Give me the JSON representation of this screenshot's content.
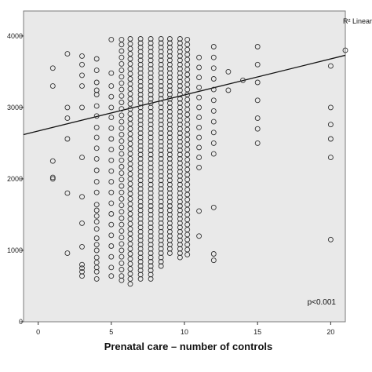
{
  "chart_data": {
    "type": "scatter",
    "title": "",
    "xlabel": "Prenatal care – number of controls",
    "ylabel": "",
    "xlim": [
      -1,
      21
    ],
    "ylim": [
      0,
      4350
    ],
    "x_ticks": [
      0,
      5,
      10,
      15,
      20
    ],
    "y_ticks": [
      0,
      1000,
      2000,
      3000,
      4000
    ],
    "x_tick_labels": [
      "0",
      "5",
      "10",
      "15",
      "20"
    ],
    "y_tick_labels": [
      "0",
      "1000",
      "2000",
      "3000",
      "4000"
    ],
    "grid": false,
    "legend": "top-right",
    "legend_label": "R² Linear",
    "annotation": "p<0.001",
    "fit_line": {
      "x": [
        -1,
        21
      ],
      "y": [
        2620,
        3730
      ]
    },
    "colors": {
      "background": "#e9e9e9",
      "marker_stroke": "#333333",
      "line": "#111111"
    },
    "series": [
      {
        "name": "",
        "columns": [
          {
            "x": 1,
            "y": [
              3550,
              3300,
              2250,
              2020,
              2000
            ]
          },
          {
            "x": 2,
            "y": [
              3750,
              3000,
              2850,
              2560,
              1800,
              960
            ]
          },
          {
            "x": 3,
            "y": [
              3720,
              3600,
              3450,
              3300,
              3000,
              2300,
              1750,
              1380,
              1050,
              800,
              750,
              700,
              640
            ]
          },
          {
            "x": 4,
            "y": [
              3680,
              3520,
              3350,
              3240,
              3180,
              3020,
              2880,
              2720,
              2580,
              2430,
              2280,
              2120,
              1960,
              1810,
              1640,
              1560,
              1480,
              1400,
              1300,
              1170,
              1080,
              1000,
              900,
              830,
              760,
              700,
              600
            ]
          },
          {
            "x": 5,
            "y": [
              3950,
              3480,
              3300,
              3150,
              3000,
              2860,
              2710,
              2560,
              2410,
              2260,
              2110,
              1960,
              1810,
              1660,
              1510,
              1360,
              1210,
              1060,
              910,
              760,
              640
            ]
          },
          {
            "x": 5.7,
            "y": [
              3950,
              3880,
              3790,
              3700,
              3610,
              3520,
              3430,
              3340,
              3250,
              3160,
              3070,
              2980,
              2890,
              2800,
              2710,
              2620,
              2530,
              2440,
              2350,
              2260,
              2170,
              2080,
              1990,
              1900,
              1810,
              1720,
              1630,
              1540,
              1450,
              1360,
              1270,
              1180,
              1090,
              1000,
              910,
              820,
              730,
              640,
              580
            ]
          },
          {
            "x": 6.3,
            "y": [
              3960,
              3890,
              3820,
              3750,
              3680,
              3610,
              3540,
              3470,
              3400,
              3330,
              3260,
              3190,
              3120,
              3050,
              2980,
              2910,
              2840,
              2770,
              2700,
              2630,
              2560,
              2490,
              2420,
              2350,
              2280,
              2210,
              2140,
              2070,
              2000,
              1930,
              1860,
              1790,
              1720,
              1650,
              1580,
              1510,
              1440,
              1370,
              1300,
              1230,
              1160,
              1090,
              1020,
              950,
              880,
              810,
              740,
              670,
              600,
              530
            ]
          },
          {
            "x": 7,
            "y": [
              3960,
              3900,
              3840,
              3780,
              3720,
              3660,
              3600,
              3540,
              3480,
              3420,
              3360,
              3300,
              3240,
              3180,
              3120,
              3060,
              3000,
              2940,
              2880,
              2820,
              2760,
              2700,
              2640,
              2580,
              2520,
              2460,
              2400,
              2340,
              2280,
              2220,
              2160,
              2100,
              2040,
              1980,
              1920,
              1860,
              1800,
              1740,
              1680,
              1620,
              1560,
              1500,
              1440,
              1380,
              1320,
              1260,
              1200,
              1140,
              1080,
              1020,
              960,
              900,
              840,
              780,
              720,
              660,
              600
            ]
          },
          {
            "x": 7.7,
            "y": [
              3960,
              3900,
              3840,
              3780,
              3720,
              3660,
              3600,
              3540,
              3480,
              3420,
              3360,
              3300,
              3240,
              3180,
              3120,
              3060,
              3000,
              2940,
              2880,
              2820,
              2760,
              2700,
              2640,
              2580,
              2520,
              2460,
              2400,
              2340,
              2280,
              2220,
              2160,
              2100,
              2040,
              1980,
              1920,
              1860,
              1800,
              1740,
              1680,
              1620,
              1560,
              1500,
              1440,
              1380,
              1320,
              1260,
              1200,
              1140,
              1080,
              1020,
              960,
              900,
              840,
              780,
              720,
              660,
              600
            ]
          },
          {
            "x": 8.4,
            "y": [
              3960,
              3900,
              3840,
              3780,
              3720,
              3660,
              3600,
              3540,
              3480,
              3420,
              3360,
              3300,
              3240,
              3180,
              3120,
              3060,
              3000,
              2940,
              2880,
              2820,
              2760,
              2700,
              2640,
              2580,
              2520,
              2460,
              2400,
              2340,
              2280,
              2220,
              2160,
              2100,
              2040,
              1980,
              1920,
              1860,
              1800,
              1740,
              1680,
              1620,
              1560,
              1500,
              1440,
              1380,
              1320,
              1260,
              1200,
              1140,
              1080,
              1020,
              960,
              900,
              840,
              780
            ]
          },
          {
            "x": 9,
            "y": [
              3960,
              3900,
              3840,
              3780,
              3720,
              3660,
              3600,
              3540,
              3480,
              3420,
              3360,
              3300,
              3240,
              3180,
              3120,
              3060,
              3000,
              2940,
              2880,
              2820,
              2760,
              2700,
              2640,
              2580,
              2520,
              2460,
              2400,
              2340,
              2280,
              2220,
              2160,
              2100,
              2040,
              1980,
              1920,
              1860,
              1800,
              1740,
              1680,
              1620,
              1560,
              1500,
              1440,
              1380,
              1320,
              1260,
              1200,
              1140,
              1080,
              1020,
              960
            ]
          },
          {
            "x": 9.7,
            "y": [
              3960,
              3900,
              3840,
              3780,
              3720,
              3660,
              3600,
              3540,
              3480,
              3420,
              3360,
              3300,
              3240,
              3180,
              3120,
              3060,
              3000,
              2940,
              2880,
              2820,
              2760,
              2700,
              2640,
              2580,
              2520,
              2460,
              2400,
              2340,
              2280,
              2220,
              2160,
              2100,
              2040,
              1980,
              1920,
              1860,
              1800,
              1740,
              1680,
              1620,
              1560,
              1500,
              1440,
              1380,
              1320,
              1260,
              1200,
              1140,
              1080,
              1020,
              960,
              900
            ]
          },
          {
            "x": 10.2,
            "y": [
              3950,
              3880,
              3810,
              3740,
              3670,
              3600,
              3530,
              3460,
              3390,
              3320,
              3250,
              3180,
              3110,
              3040,
              2970,
              2900,
              2830,
              2760,
              2690,
              2620,
              2550,
              2480,
              2410,
              2340,
              2270,
              2200,
              2130,
              2060,
              1990,
              1920,
              1850,
              1780,
              1710,
              1640,
              1570,
              1500,
              1430,
              1360,
              1290,
              1220,
              1150,
              1080,
              1010,
              940
            ]
          },
          {
            "x": 11,
            "y": [
              3700,
              3560,
              3420,
              3280,
              3140,
              3000,
              2860,
              2720,
              2580,
              2440,
              2300,
              2160,
              1550,
              1200
            ]
          },
          {
            "x": 12,
            "y": [
              3850,
              3700,
              3550,
              3400,
              3250,
              3100,
              2950,
              2800,
              2650,
              2500,
              2350,
              1600,
              950,
              860
            ]
          },
          {
            "x": 13,
            "y": [
              3500,
              3240
            ]
          },
          {
            "x": 14,
            "y": [
              3380
            ]
          },
          {
            "x": 15,
            "y": [
              3850,
              3600,
              3350,
              3100,
              2850,
              2700,
              2500
            ]
          },
          {
            "x": 20,
            "y": [
              3580,
              3000,
              2760,
              2560,
              2300,
              1150
            ]
          },
          {
            "x": 21,
            "y": [
              3800
            ]
          }
        ]
      }
    ]
  }
}
